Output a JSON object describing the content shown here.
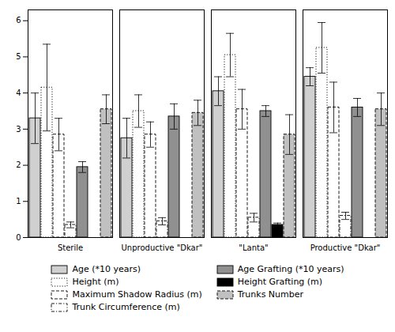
{
  "chart_data": {
    "type": "bar",
    "categories": [
      "Sterile",
      "Unproductive \"Dkar\"",
      "\"Lanta\"",
      "Productive \"Dkar\""
    ],
    "series": [
      {
        "name": "Age (*10 years)",
        "color": "#d0d0d0",
        "line_style": "solid",
        "values": [
          3.3,
          2.75,
          4.05,
          4.45
        ],
        "errors": [
          0.7,
          0.55,
          0.4,
          0.25
        ]
      },
      {
        "name": "Height (m)",
        "color": "#ffffff",
        "line_style": "dotted",
        "values": [
          4.15,
          3.5,
          5.05,
          5.25
        ],
        "errors": [
          1.2,
          0.45,
          0.6,
          0.7
        ]
      },
      {
        "name": "Maximum Shadow Radius (m)",
        "color": "#ffffff",
        "line_style": "dashed",
        "values": [
          2.85,
          2.85,
          3.55,
          3.6
        ],
        "errors": [
          0.45,
          0.35,
          0.55,
          0.7
        ]
      },
      {
        "name": "Trunk Circumference (m)",
        "color": "#ffffff",
        "line_style": "dashdot",
        "values": [
          0.35,
          0.45,
          0.55,
          0.6
        ],
        "errors": [
          0.08,
          0.1,
          0.12,
          0.1
        ]
      },
      {
        "name": "Age Grafting (*10 years)",
        "color": "#909090",
        "line_style": "solid",
        "values": [
          1.95,
          3.35,
          3.5,
          3.6
        ],
        "errors": [
          0.15,
          0.35,
          0.15,
          0.25
        ]
      },
      {
        "name": "Height Grafting (m)",
        "color": "#000000",
        "line_style": "solid",
        "values": [
          0.0,
          0.0,
          0.35,
          0.0
        ],
        "errors": [
          0.0,
          0.0,
          0.05,
          0.0
        ]
      },
      {
        "name": "Trunks Number",
        "color": "#c0c0c0",
        "line_style": "dashed",
        "values": [
          3.55,
          3.45,
          2.85,
          3.55
        ],
        "errors": [
          0.4,
          0.35,
          0.55,
          0.45
        ]
      }
    ],
    "ylim": [
      0,
      6.3
    ],
    "yticks": [
      0,
      1,
      2,
      3,
      4,
      5,
      6
    ],
    "grid": false,
    "legend": "bottom"
  }
}
